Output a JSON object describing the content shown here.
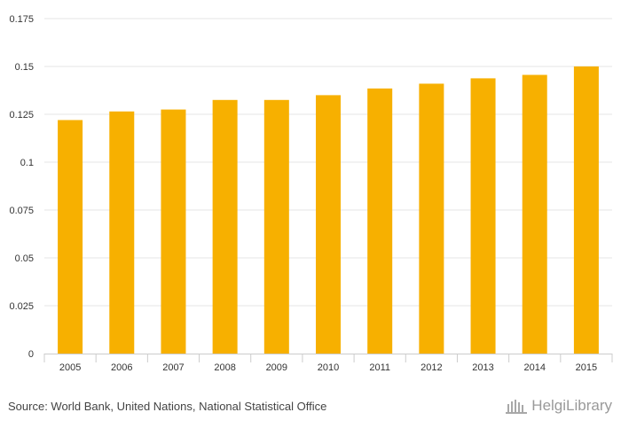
{
  "chart_data": {
    "type": "bar",
    "title": "",
    "xlabel": "",
    "ylabel": "",
    "categories": [
      "2005",
      "2006",
      "2007",
      "2008",
      "2009",
      "2010",
      "2011",
      "2012",
      "2013",
      "2014",
      "2015"
    ],
    "values": [
      0.122,
      0.1265,
      0.1275,
      0.1325,
      0.1325,
      0.135,
      0.1385,
      0.141,
      0.1438,
      0.1456,
      0.15
    ],
    "ylim": [
      0,
      0.175
    ],
    "yticks": [
      0,
      0.025,
      0.05,
      0.075,
      0.1,
      0.125,
      0.15,
      0.175
    ],
    "ytick_labels": [
      "0",
      "0.025",
      "0.05",
      "0.075",
      "0.1",
      "0.125",
      "0.15",
      "0.175"
    ],
    "bar_color": "#f7b000",
    "grid": true
  },
  "footer": {
    "source": "Source: World Bank, United Nations, National Statistical Office",
    "brand": "HelgiLibrary"
  }
}
